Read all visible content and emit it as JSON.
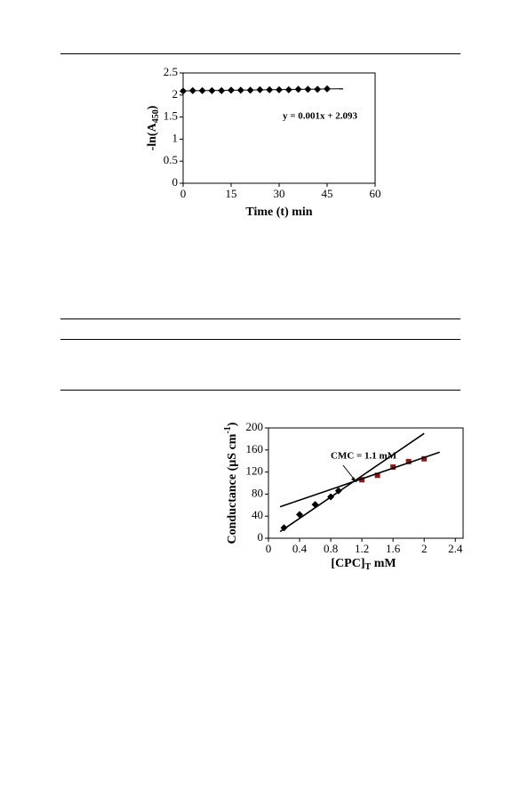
{
  "chart_data": [
    {
      "type": "scatter",
      "xlabel": "Time (t) min",
      "ylabel_parts": [
        "-ln(A",
        "450",
        ")"
      ],
      "annotation": "y = 0.001x + 2.093",
      "xlim": [
        0,
        60
      ],
      "ylim": [
        0,
        2.5
      ],
      "xticks": [
        0,
        15,
        30,
        45,
        60
      ],
      "yticks": [
        0,
        0.5,
        1,
        1.5,
        2,
        2.5
      ],
      "series": [
        {
          "mode": "markers",
          "marker": "diamond",
          "color": "#000000",
          "x": [
            0,
            3,
            6,
            9,
            12,
            15,
            18,
            21,
            24,
            27,
            30,
            33,
            36,
            39,
            42,
            45
          ],
          "values": [
            2.09,
            2.1,
            2.1,
            2.1,
            2.1,
            2.11,
            2.11,
            2.11,
            2.12,
            2.12,
            2.12,
            2.12,
            2.13,
            2.13,
            2.13,
            2.14
          ]
        },
        {
          "mode": "line",
          "color": "#000000",
          "x": [
            0,
            50
          ],
          "values": [
            2.093,
            2.143
          ]
        }
      ]
    },
    {
      "type": "scatter",
      "xlabel_parts": [
        "[CPC]",
        "T",
        " mM"
      ],
      "ylabel_parts": [
        "Conductance  (µS cm",
        "-1",
        ")"
      ],
      "annotation": "CMC = 1.1 mM",
      "xlim": [
        0,
        2.5
      ],
      "ylim": [
        0,
        200
      ],
      "xticks": [
        0,
        0.4,
        0.8,
        1.2,
        1.6,
        2,
        2.4
      ],
      "yticks": [
        0,
        40,
        80,
        120,
        160,
        200
      ],
      "series": [
        {
          "mode": "markers",
          "marker": "diamond",
          "color": "#000000",
          "x": [
            0.2,
            0.4,
            0.6,
            0.8,
            0.9
          ],
          "values": [
            19,
            43,
            61,
            75,
            86
          ]
        },
        {
          "mode": "markers",
          "marker": "square",
          "color": "#8b1a1a",
          "x": [
            1.2,
            1.4,
            1.6,
            1.8,
            2
          ],
          "values": [
            106,
            114,
            129,
            139,
            144
          ]
        },
        {
          "mode": "line",
          "color": "#000000",
          "x": [
            0.15,
            2
          ],
          "values": [
            12,
            190
          ]
        },
        {
          "mode": "line",
          "color": "#000000",
          "x": [
            0.15,
            2.2
          ],
          "values": [
            57,
            156
          ]
        }
      ]
    }
  ]
}
